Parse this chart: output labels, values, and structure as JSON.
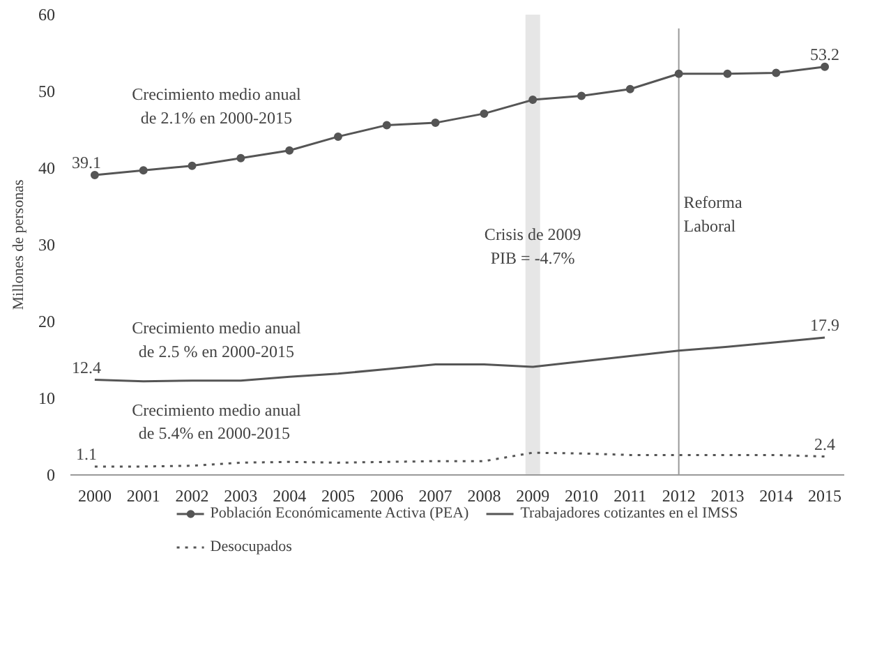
{
  "chart_data": {
    "type": "line",
    "ylabel": "Millones de personas",
    "x": [
      2000,
      2001,
      2002,
      2003,
      2004,
      2005,
      2006,
      2007,
      2008,
      2009,
      2010,
      2011,
      2012,
      2013,
      2014,
      2015
    ],
    "xlim": [
      1999.5,
      2015.4
    ],
    "xticks": [
      2000,
      2001,
      2002,
      2003,
      2004,
      2005,
      2006,
      2007,
      2008,
      2009,
      2010,
      2011,
      2012,
      2013,
      2014,
      2015
    ],
    "ylim": [
      0,
      60
    ],
    "yticks": [
      0,
      10,
      20,
      30,
      40,
      50,
      60
    ],
    "series": [
      {
        "name": "Población Económicamente Activa (PEA)",
        "color": "#555555",
        "marker": "circle",
        "line_style": "solid",
        "values": [
          39.1,
          39.7,
          40.3,
          41.3,
          42.3,
          44.1,
          45.6,
          45.9,
          47.1,
          48.9,
          49.4,
          50.3,
          52.3,
          52.3,
          52.4,
          53.2
        ],
        "value_labels": [
          "39.1",
          null,
          null,
          null,
          null,
          null,
          null,
          null,
          null,
          null,
          null,
          null,
          null,
          null,
          null,
          "53.2"
        ]
      },
      {
        "name": "Trabajadores cotizantes en el IMSS",
        "color": "#555555",
        "marker": "none",
        "line_style": "solid",
        "values": [
          12.4,
          12.2,
          12.3,
          12.3,
          12.8,
          13.2,
          13.8,
          14.4,
          14.4,
          14.1,
          14.8,
          15.5,
          16.2,
          16.7,
          17.3,
          17.9
        ],
        "value_labels": [
          "12.4",
          null,
          null,
          null,
          null,
          null,
          null,
          null,
          null,
          null,
          null,
          null,
          null,
          null,
          null,
          "17.9"
        ]
      },
      {
        "name": "Desocupados",
        "color": "#555555",
        "marker": "none",
        "line_style": "dotted",
        "values": [
          1.1,
          1.1,
          1.2,
          1.6,
          1.7,
          1.6,
          1.7,
          1.8,
          1.8,
          2.9,
          2.8,
          2.6,
          2.6,
          2.6,
          2.6,
          2.4
        ],
        "value_labels": [
          "1.1",
          null,
          null,
          null,
          null,
          null,
          null,
          null,
          null,
          null,
          null,
          null,
          null,
          null,
          null,
          "2.4"
        ]
      }
    ],
    "bands": [
      {
        "axis": "x",
        "from": 2008.85,
        "to": 2009.15,
        "label": "Crisis de 2009\nPIB = -4.7%",
        "color": "#e6e6e6"
      }
    ],
    "ref_lines": [
      {
        "axis": "x",
        "value": 2012,
        "label": "Reforma\nLaboral",
        "color": "#999999",
        "line_style": "solid"
      }
    ],
    "annotations": [
      "Crecimiento medio anual\nde 2.1% en 2000-2015",
      "Crecimiento medio anual\nde 2.5 % en 2000-2015",
      "Crecimiento medio anual\nde 5.4%  en 2000-2015"
    ],
    "grid": false,
    "legend": "bottom"
  }
}
